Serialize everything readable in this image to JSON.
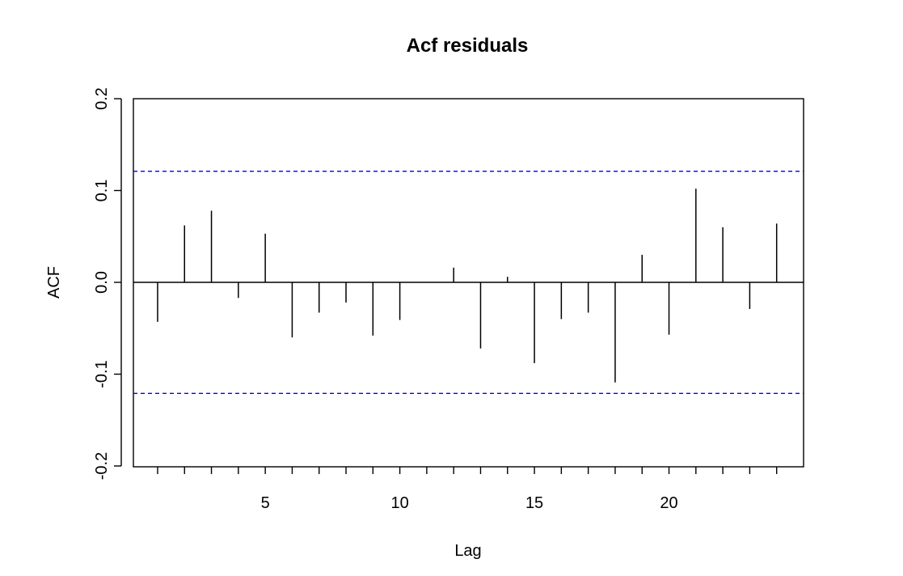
{
  "chart_data": {
    "type": "bar",
    "title": "Acf residuals",
    "xlabel": "Lag",
    "ylabel": "ACF",
    "xlim": [
      0.1,
      25.0
    ],
    "ylim": [
      -0.2,
      0.2
    ],
    "x_ticks": [
      5,
      10,
      15,
      20
    ],
    "x_minor_ticks": [
      1,
      2,
      3,
      4,
      5,
      6,
      7,
      8,
      9,
      10,
      11,
      12,
      13,
      14,
      15,
      16,
      17,
      18,
      19,
      20,
      21,
      22,
      23,
      24
    ],
    "y_ticks": [
      "-0.2",
      "-0.1",
      "0.0",
      "0.1",
      "0.2"
    ],
    "x": [
      1,
      2,
      3,
      4,
      5,
      6,
      7,
      8,
      9,
      10,
      11,
      12,
      13,
      14,
      15,
      16,
      17,
      18,
      19,
      20,
      21,
      22,
      23,
      24
    ],
    "values": [
      -0.043,
      0.062,
      0.078,
      -0.017,
      0.053,
      -0.06,
      -0.033,
      -0.022,
      -0.058,
      -0.041,
      0.0,
      0.016,
      -0.072,
      0.006,
      -0.088,
      -0.04,
      -0.033,
      -0.109,
      0.03,
      -0.057,
      0.102,
      0.06,
      -0.029,
      0.064
    ],
    "confidence_bounds": [
      0.121,
      -0.121
    ],
    "bound_color": "#0000ff",
    "grid": false,
    "legend": "none"
  }
}
